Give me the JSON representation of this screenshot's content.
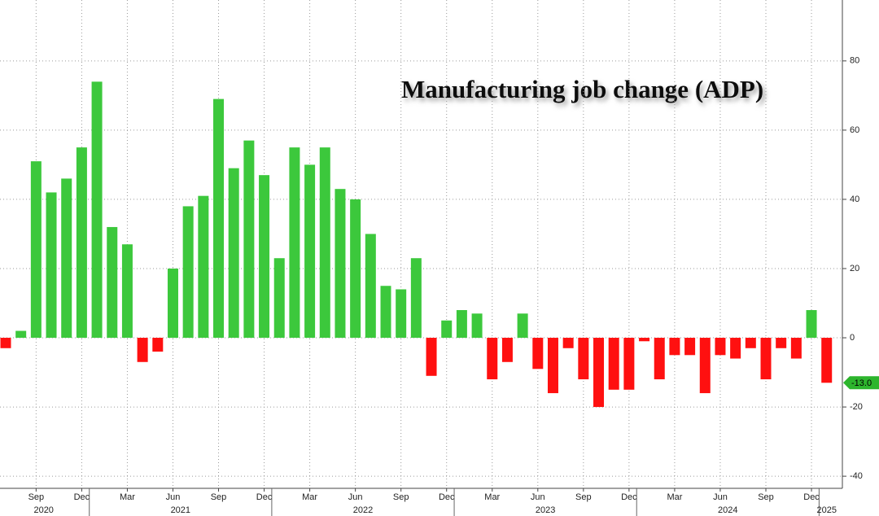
{
  "chart_data": {
    "type": "bar",
    "title": "Manufacturing job change (ADP)",
    "x": [
      "2020-07",
      "2020-08",
      "2020-09",
      "2020-10",
      "2020-11",
      "2020-12",
      "2021-01",
      "2021-02",
      "2021-03",
      "2021-04",
      "2021-05",
      "2021-06",
      "2021-07",
      "2021-08",
      "2021-09",
      "2021-10",
      "2021-11",
      "2021-12",
      "2022-01",
      "2022-02",
      "2022-03",
      "2022-04",
      "2022-05",
      "2022-06",
      "2022-07",
      "2022-08",
      "2022-09",
      "2022-10",
      "2022-11",
      "2022-12",
      "2023-01",
      "2023-02",
      "2023-03",
      "2023-04",
      "2023-05",
      "2023-06",
      "2023-07",
      "2023-08",
      "2023-09",
      "2023-10",
      "2023-11",
      "2023-12",
      "2024-01",
      "2024-02",
      "2024-03",
      "2024-04",
      "2024-05",
      "2024-06",
      "2024-07",
      "2024-08",
      "2024-09",
      "2024-10",
      "2024-11",
      "2024-12",
      "2025-01"
    ],
    "values": [
      -3,
      2,
      51,
      42,
      46,
      55,
      74,
      32,
      27,
      -7,
      -4,
      20,
      38,
      41,
      69,
      49,
      57,
      47,
      23,
      55,
      50,
      55,
      43,
      40,
      30,
      15,
      14,
      23,
      -11,
      5,
      8,
      7,
      -12,
      -7,
      7,
      -9,
      -16,
      -3,
      -12,
      -20,
      -15,
      -15,
      -1,
      -12,
      -5,
      -5,
      -16,
      -5,
      -6,
      -3,
      -12,
      -3,
      -6,
      8,
      -13
    ],
    "value_labels": [
      null,
      null,
      null,
      null,
      null,
      null,
      null,
      null,
      null,
      null,
      null,
      null,
      null,
      null,
      null,
      null,
      null,
      null,
      null,
      null,
      null,
      null,
      null,
      null,
      null,
      null,
      null,
      null,
      null,
      null,
      null,
      null,
      null,
      null,
      null,
      null,
      null,
      null,
      null,
      null,
      null,
      null,
      null,
      null,
      null,
      null,
      null,
      null,
      null,
      null,
      null,
      null,
      null,
      null,
      "-13.0"
    ],
    "colors": {
      "positive": "#3cc83c",
      "negative": "#ff1010"
    },
    "xticks": [
      {
        "value": "2020-09",
        "label": "Sep"
      },
      {
        "value": "2020-12",
        "label": "Dec"
      },
      {
        "value": "2021-03",
        "label": "Mar"
      },
      {
        "value": "2021-06",
        "label": "Jun"
      },
      {
        "value": "2021-09",
        "label": "Sep"
      },
      {
        "value": "2021-12",
        "label": "Dec"
      },
      {
        "value": "2022-03",
        "label": "Mar"
      },
      {
        "value": "2022-06",
        "label": "Jun"
      },
      {
        "value": "2022-09",
        "label": "Sep"
      },
      {
        "value": "2022-12",
        "label": "Dec"
      },
      {
        "value": "2023-03",
        "label": "Mar"
      },
      {
        "value": "2023-06",
        "label": "Jun"
      },
      {
        "value": "2023-09",
        "label": "Sep"
      },
      {
        "value": "2023-12",
        "label": "Dec"
      },
      {
        "value": "2024-03",
        "label": "Mar"
      },
      {
        "value": "2024-06",
        "label": "Jun"
      },
      {
        "value": "2024-09",
        "label": "Sep"
      },
      {
        "value": "2024-12",
        "label": "Dec"
      }
    ],
    "year_ticks": [
      "2020",
      "2021",
      "2022",
      "2023",
      "2024",
      "2025"
    ],
    "ylim": [
      -43.5,
      97.6
    ],
    "yticks": [
      -40,
      -20,
      0,
      20,
      40,
      60,
      80
    ],
    "grid": true
  }
}
